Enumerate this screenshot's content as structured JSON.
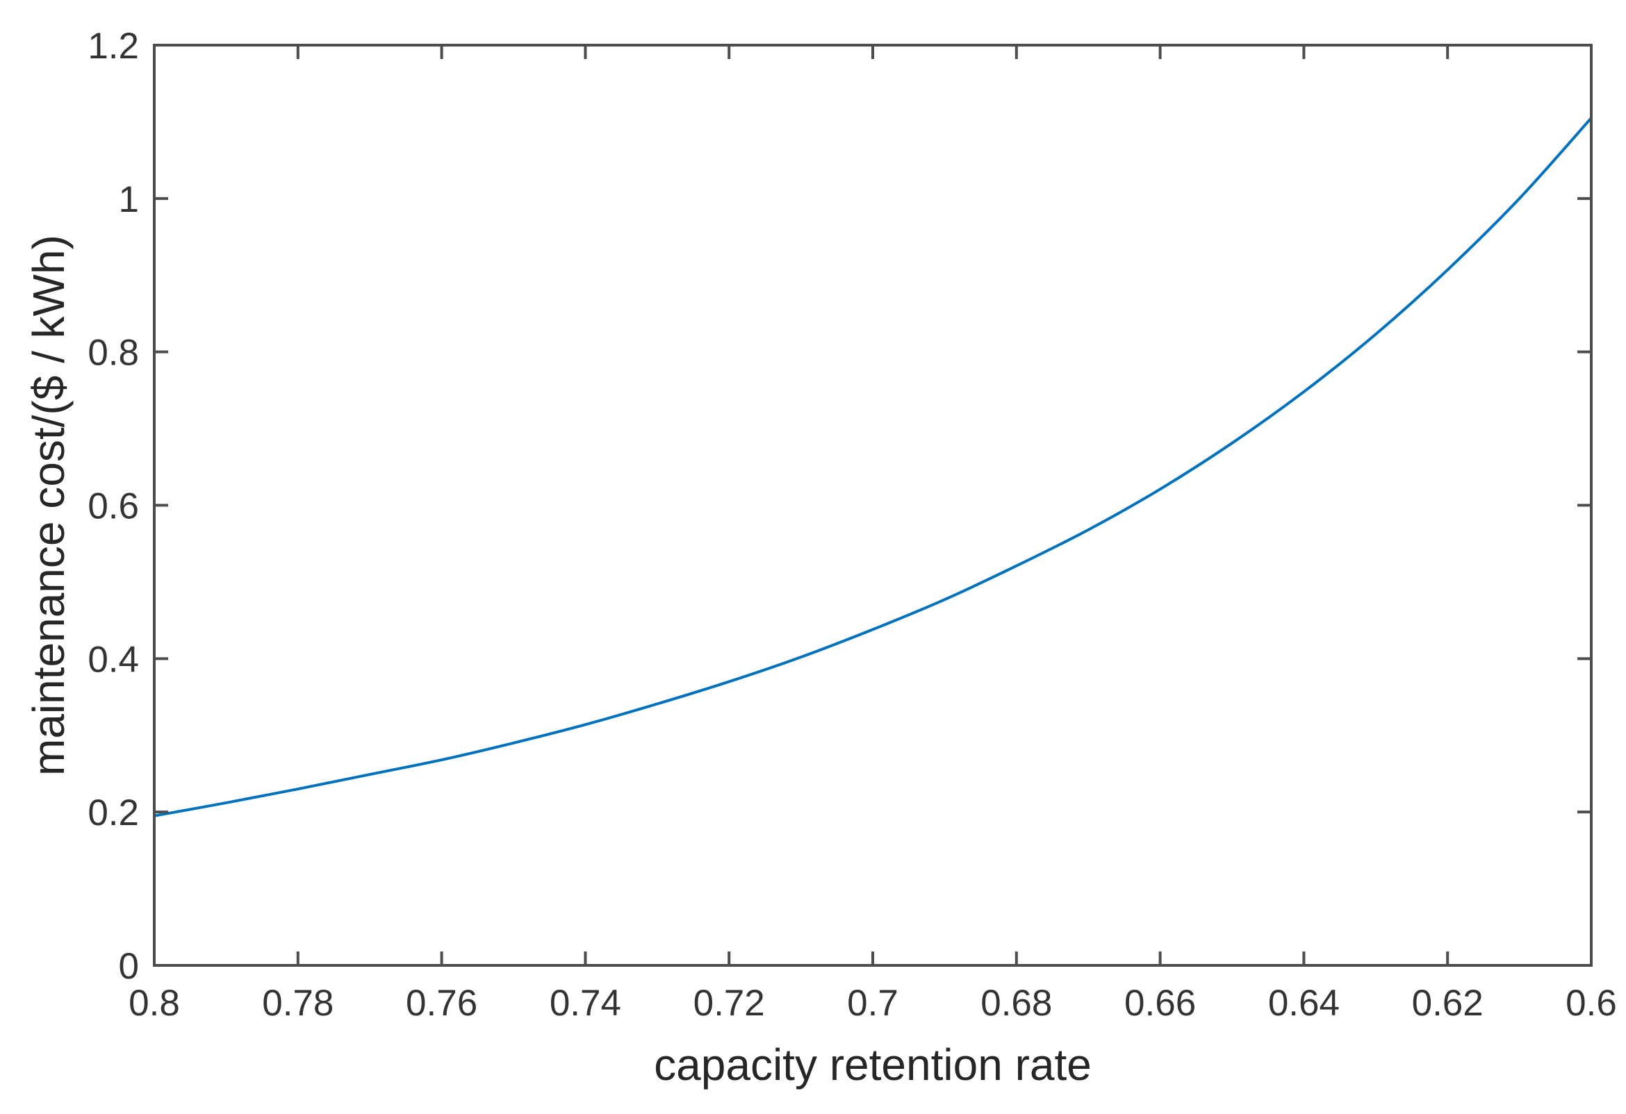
{
  "chart_data": {
    "type": "line",
    "title": "",
    "xlabel": "capacity retention rate",
    "ylabel": "maintenance cost/($ / kWh)",
    "xlim": [
      0.8,
      0.6
    ],
    "ylim": [
      0,
      1.2
    ],
    "x_reversed": true,
    "grid": false,
    "x_ticks": [
      0.8,
      0.78,
      0.76,
      0.74,
      0.72,
      0.7,
      0.68,
      0.66,
      0.64,
      0.62,
      0.6
    ],
    "x_tick_labels": [
      "0.8",
      "0.78",
      "0.76",
      "0.74",
      "0.72",
      "0.7",
      "0.68",
      "0.66",
      "0.64",
      "0.62",
      "0.6"
    ],
    "y_ticks": [
      0,
      0.2,
      0.4,
      0.6,
      0.8,
      1,
      1.2
    ],
    "y_tick_labels": [
      "0",
      "0.2",
      "0.4",
      "0.6",
      "0.8",
      "1",
      "1.2"
    ],
    "series": [
      {
        "color": "#0072BD",
        "x": [
          0.8,
          0.79,
          0.78,
          0.77,
          0.76,
          0.75,
          0.74,
          0.73,
          0.72,
          0.71,
          0.7,
          0.69,
          0.68,
          0.67,
          0.66,
          0.65,
          0.64,
          0.63,
          0.62,
          0.61,
          0.6
        ],
        "y": [
          0.195,
          0.212,
          0.23,
          0.249,
          0.268,
          0.29,
          0.314,
          0.341,
          0.37,
          0.402,
          0.438,
          0.477,
          0.521,
          0.568,
          0.621,
          0.681,
          0.748,
          0.823,
          0.907,
          1.0,
          1.105
        ]
      }
    ]
  }
}
